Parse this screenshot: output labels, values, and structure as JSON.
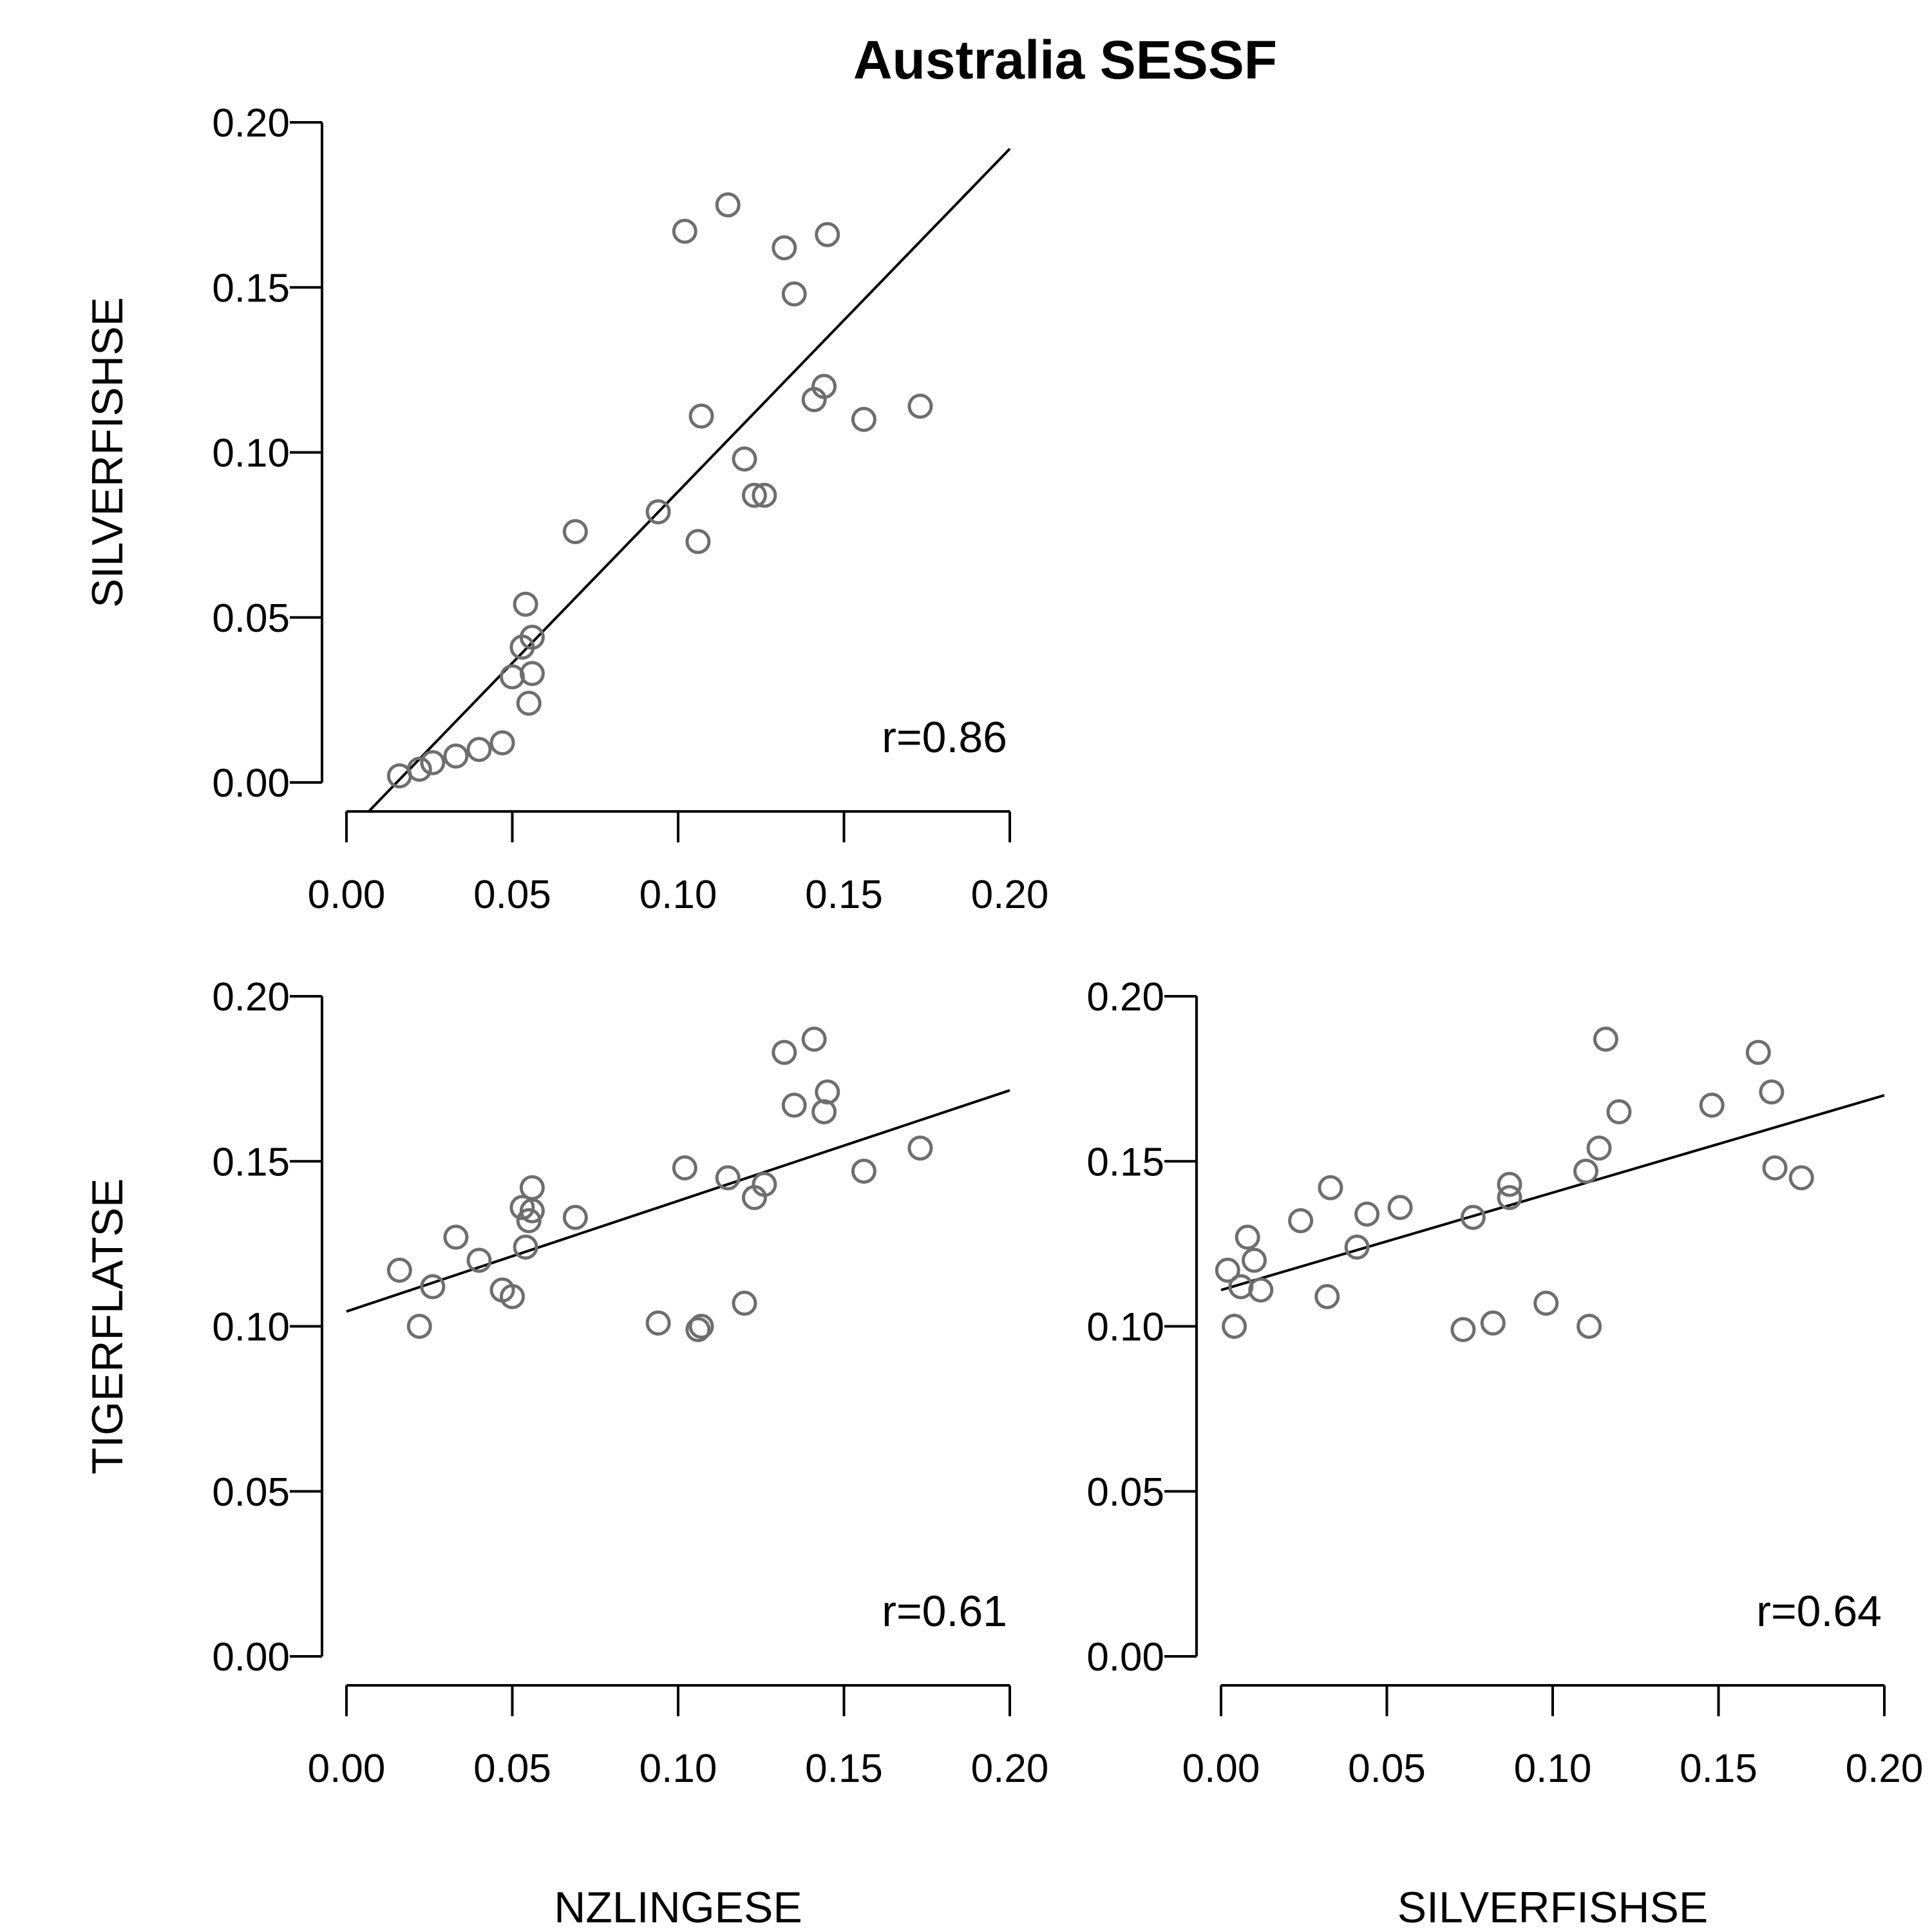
{
  "figure": {
    "title": "Australia SESSF",
    "colors": {
      "point": "#6e6e6e",
      "line": "#000000",
      "axis": "#000000"
    }
  },
  "chart_data": [
    {
      "type": "scatter",
      "id": "nzling_vs_silverfish",
      "xlabel": "",
      "ylabel": "SILVERFISHSE",
      "xlim": [
        0.0,
        0.2
      ],
      "ylim": [
        0.0,
        0.2
      ],
      "xticks": [
        "0.00",
        "0.05",
        "0.10",
        "0.15",
        "0.20"
      ],
      "yticks": [
        "0.00",
        "0.05",
        "0.10",
        "0.15",
        "0.20"
      ],
      "annotation": "r=0.86",
      "fit_line": {
        "x": [
          0.0065,
          0.2
        ],
        "y": [
          -0.009,
          0.192
        ]
      },
      "points": [
        [
          0.016,
          0.002
        ],
        [
          0.022,
          0.004
        ],
        [
          0.026,
          0.006
        ],
        [
          0.033,
          0.008
        ],
        [
          0.04,
          0.01
        ],
        [
          0.047,
          0.012
        ],
        [
          0.05,
          0.032
        ],
        [
          0.054,
          0.054
        ],
        [
          0.053,
          0.041
        ],
        [
          0.056,
          0.044
        ],
        [
          0.055,
          0.024
        ],
        [
          0.056,
          0.033
        ],
        [
          0.069,
          0.076
        ],
        [
          0.094,
          0.082
        ],
        [
          0.102,
          0.167
        ],
        [
          0.106,
          0.073
        ],
        [
          0.107,
          0.111
        ],
        [
          0.115,
          0.175
        ],
        [
          0.12,
          0.098
        ],
        [
          0.123,
          0.087
        ],
        [
          0.126,
          0.087
        ],
        [
          0.132,
          0.162
        ],
        [
          0.135,
          0.148
        ],
        [
          0.141,
          0.116
        ],
        [
          0.145,
          0.166
        ],
        [
          0.144,
          0.12
        ],
        [
          0.156,
          0.11
        ],
        [
          0.173,
          0.114
        ]
      ]
    },
    {
      "type": "scatter",
      "id": "nzling_vs_tigerflat",
      "xlabel": "NZLINGESE",
      "ylabel": "TIGERFLATSE",
      "xlim": [
        0.0,
        0.2
      ],
      "ylim": [
        0.0,
        0.2
      ],
      "xticks": [
        "0.00",
        "0.05",
        "0.10",
        "0.15",
        "0.20"
      ],
      "yticks": [
        "0.00",
        "0.05",
        "0.10",
        "0.15",
        "0.20"
      ],
      "annotation": "r=0.61",
      "fit_line": {
        "x": [
          0.0,
          0.2
        ],
        "y": [
          0.1045,
          0.1715
        ]
      },
      "points": [
        [
          0.016,
          0.117
        ],
        [
          0.022,
          0.1
        ],
        [
          0.026,
          0.112
        ],
        [
          0.033,
          0.127
        ],
        [
          0.04,
          0.12
        ],
        [
          0.047,
          0.111
        ],
        [
          0.05,
          0.109
        ],
        [
          0.054,
          0.124
        ],
        [
          0.053,
          0.136
        ],
        [
          0.056,
          0.142
        ],
        [
          0.055,
          0.132
        ],
        [
          0.056,
          0.135
        ],
        [
          0.069,
          0.133
        ],
        [
          0.094,
          0.101
        ],
        [
          0.102,
          0.148
        ],
        [
          0.106,
          0.099
        ],
        [
          0.107,
          0.1
        ],
        [
          0.115,
          0.145
        ],
        [
          0.12,
          0.107
        ],
        [
          0.123,
          0.139
        ],
        [
          0.126,
          0.143
        ],
        [
          0.132,
          0.183
        ],
        [
          0.135,
          0.167
        ],
        [
          0.141,
          0.187
        ],
        [
          0.145,
          0.171
        ],
        [
          0.144,
          0.165
        ],
        [
          0.156,
          0.147
        ],
        [
          0.173,
          0.154
        ]
      ]
    },
    {
      "type": "scatter",
      "id": "silverfish_vs_tigerflat",
      "xlabel": "SILVERFISHSE",
      "ylabel": "",
      "xlim": [
        0.0,
        0.2
      ],
      "ylim": [
        0.0,
        0.2
      ],
      "xticks": [
        "0.00",
        "0.05",
        "0.10",
        "0.15",
        "0.20"
      ],
      "yticks": [
        "0.00",
        "0.05",
        "0.10",
        "0.15",
        "0.20"
      ],
      "annotation": "r=0.64",
      "fit_line": {
        "x": [
          0.0,
          0.2
        ],
        "y": [
          0.111,
          0.17
        ]
      },
      "points": [
        [
          0.002,
          0.117
        ],
        [
          0.004,
          0.1
        ],
        [
          0.006,
          0.112
        ],
        [
          0.008,
          0.127
        ],
        [
          0.01,
          0.12
        ],
        [
          0.012,
          0.111
        ],
        [
          0.032,
          0.109
        ],
        [
          0.054,
          0.136
        ],
        [
          0.041,
          0.124
        ],
        [
          0.044,
          0.134
        ],
        [
          0.024,
          0.132
        ],
        [
          0.033,
          0.142
        ],
        [
          0.076,
          0.133
        ],
        [
          0.082,
          0.101
        ],
        [
          0.167,
          0.148
        ],
        [
          0.073,
          0.099
        ],
        [
          0.111,
          0.1
        ],
        [
          0.175,
          0.145
        ],
        [
          0.098,
          0.107
        ],
        [
          0.087,
          0.139
        ],
        [
          0.087,
          0.143
        ],
        [
          0.162,
          0.183
        ],
        [
          0.148,
          0.167
        ],
        [
          0.116,
          0.187
        ],
        [
          0.166,
          0.171
        ],
        [
          0.12,
          0.165
        ],
        [
          0.11,
          0.147
        ],
        [
          0.114,
          0.154
        ]
      ]
    }
  ]
}
